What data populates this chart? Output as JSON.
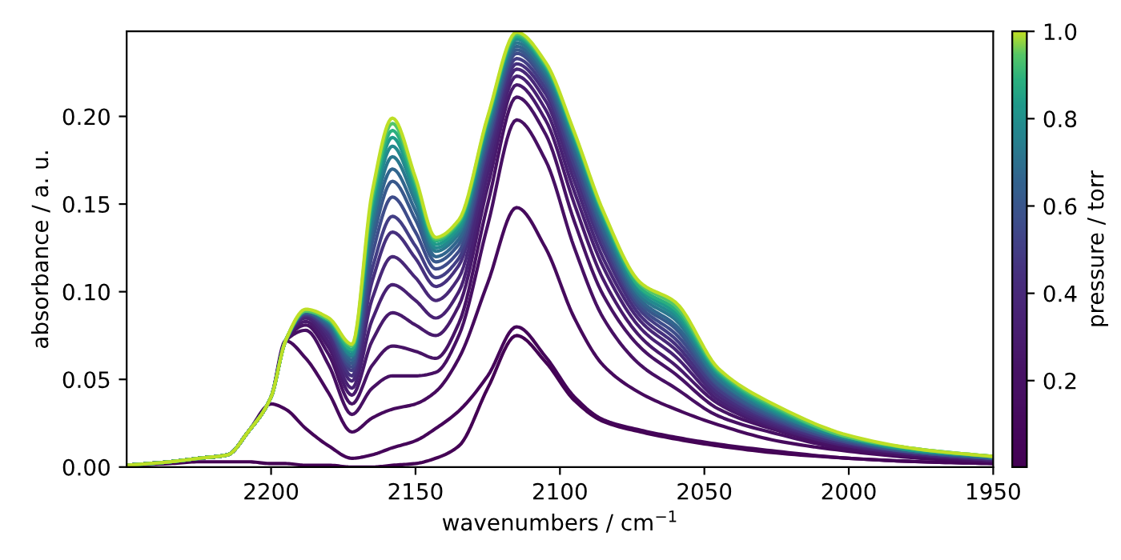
{
  "chart_data": {
    "type": "line",
    "xlabel": "wavenumbers / cm$^{−1}$",
    "ylabel": "absorbance / a. u.",
    "clabel": "pressure / torr",
    "x": [
      2250,
      2235,
      2225,
      2215,
      2208,
      2200,
      2195,
      2188,
      2180,
      2172,
      2165,
      2158,
      2150,
      2143,
      2135,
      2125,
      2115,
      2105,
      2095,
      2085,
      2072,
      2060,
      2045,
      2025,
      2000,
      1975,
      1950
    ],
    "xlim": [
      2250,
      1950
    ],
    "xticks": [
      2200,
      2150,
      2100,
      2050,
      2000,
      1950
    ],
    "ylim": [
      0,
      0.2485
    ],
    "yticks": [
      {
        "value": 0,
        "label": "0.00"
      },
      {
        "value": 0.05,
        "label": "0.05"
      },
      {
        "value": 0.1,
        "label": "0.10"
      },
      {
        "value": 0.15,
        "label": "0.15"
      },
      {
        "value": 0.2,
        "label": "0.20"
      }
    ],
    "clim": [
      0.002,
      1.0
    ],
    "cticks": [
      {
        "value": 0.2,
        "label": "0.2"
      },
      {
        "value": 0.4,
        "label": "0.4"
      },
      {
        "value": 0.6,
        "label": "0.6"
      },
      {
        "value": 0.8,
        "label": "0.8"
      },
      {
        "value": 1.0,
        "label": "1.0"
      }
    ],
    "grid": false,
    "marker": "none",
    "line_style": "solid",
    "series": [
      {
        "color": "#440154",
        "values": [
          0.001,
          0.002,
          0.003,
          0.003,
          0.003,
          0.002,
          0.002,
          0.001,
          0.001,
          0.0,
          0.0,
          0.001,
          0.002,
          0.005,
          0.012,
          0.045,
          0.075,
          0.06,
          0.038,
          0.026,
          0.02,
          0.016,
          0.012,
          0.008,
          0.005,
          0.003,
          0.002
        ]
      },
      {
        "color": "#450559",
        "values": [
          0.001,
          0.003,
          0.005,
          0.007,
          0.02,
          0.036,
          0.033,
          0.022,
          0.012,
          0.005,
          0.007,
          0.011,
          0.015,
          0.022,
          0.032,
          0.052,
          0.08,
          0.063,
          0.04,
          0.027,
          0.021,
          0.017,
          0.013,
          0.009,
          0.005,
          0.003,
          0.002
        ]
      },
      {
        "color": "#460a5d",
        "values": [
          0.001,
          0.003,
          0.005,
          0.007,
          0.02,
          0.04,
          0.072,
          0.062,
          0.042,
          0.02,
          0.028,
          0.033,
          0.036,
          0.043,
          0.062,
          0.105,
          0.148,
          0.125,
          0.085,
          0.058,
          0.042,
          0.033,
          0.024,
          0.015,
          0.009,
          0.005,
          0.003
        ]
      },
      {
        "color": "#471063",
        "values": [
          0.001,
          0.003,
          0.005,
          0.007,
          0.02,
          0.04,
          0.072,
          0.078,
          0.058,
          0.03,
          0.045,
          0.052,
          0.052,
          0.054,
          0.075,
          0.138,
          0.198,
          0.175,
          0.125,
          0.085,
          0.058,
          0.045,
          0.029,
          0.019,
          0.01,
          0.006,
          0.003
        ]
      },
      {
        "color": "#471365",
        "values": [
          0.001,
          0.003,
          0.005,
          0.007,
          0.02,
          0.04,
          0.072,
          0.081,
          0.064,
          0.036,
          0.058,
          0.069,
          0.066,
          0.062,
          0.082,
          0.15,
          0.211,
          0.19,
          0.14,
          0.098,
          0.068,
          0.053,
          0.033,
          0.021,
          0.011,
          0.006,
          0.004
        ]
      },
      {
        "color": "#481a6c",
        "values": [
          0.001,
          0.003,
          0.005,
          0.007,
          0.02,
          0.04,
          0.072,
          0.083,
          0.068,
          0.041,
          0.072,
          0.088,
          0.081,
          0.075,
          0.092,
          0.16,
          0.218,
          0.198,
          0.15,
          0.107,
          0.074,
          0.058,
          0.036,
          0.022,
          0.012,
          0.007,
          0.004
        ]
      },
      {
        "color": "#482173",
        "values": [
          0.001,
          0.003,
          0.005,
          0.007,
          0.02,
          0.04,
          0.072,
          0.085,
          0.071,
          0.045,
          0.084,
          0.104,
          0.095,
          0.085,
          0.1,
          0.167,
          0.223,
          0.204,
          0.157,
          0.114,
          0.079,
          0.063,
          0.038,
          0.023,
          0.012,
          0.007,
          0.004
        ]
      },
      {
        "color": "#482878",
        "values": [
          0.001,
          0.003,
          0.005,
          0.007,
          0.02,
          0.04,
          0.072,
          0.086,
          0.074,
          0.049,
          0.096,
          0.12,
          0.108,
          0.095,
          0.108,
          0.173,
          0.227,
          0.209,
          0.163,
          0.119,
          0.083,
          0.067,
          0.04,
          0.024,
          0.013,
          0.007,
          0.004
        ]
      },
      {
        "color": "#46307e",
        "values": [
          0.001,
          0.003,
          0.005,
          0.007,
          0.02,
          0.04,
          0.072,
          0.087,
          0.076,
          0.052,
          0.106,
          0.134,
          0.119,
          0.103,
          0.115,
          0.178,
          0.23,
          0.213,
          0.168,
          0.124,
          0.086,
          0.07,
          0.042,
          0.025,
          0.013,
          0.008,
          0.005
        ]
      },
      {
        "color": "#433e85",
        "values": [
          0.001,
          0.003,
          0.005,
          0.007,
          0.02,
          0.04,
          0.072,
          0.087,
          0.078,
          0.055,
          0.113,
          0.143,
          0.126,
          0.108,
          0.119,
          0.182,
          0.233,
          0.216,
          0.172,
          0.128,
          0.089,
          0.073,
          0.044,
          0.026,
          0.014,
          0.008,
          0.005
        ]
      },
      {
        "color": "#3e4c8a",
        "values": [
          0.001,
          0.003,
          0.005,
          0.007,
          0.02,
          0.04,
          0.072,
          0.088,
          0.079,
          0.057,
          0.121,
          0.154,
          0.134,
          0.113,
          0.123,
          0.185,
          0.236,
          0.219,
          0.176,
          0.131,
          0.091,
          0.076,
          0.046,
          0.027,
          0.014,
          0.008,
          0.005
        ]
      },
      {
        "color": "#38598c",
        "values": [
          0.001,
          0.003,
          0.005,
          0.007,
          0.02,
          0.04,
          0.072,
          0.088,
          0.08,
          0.059,
          0.128,
          0.163,
          0.141,
          0.117,
          0.127,
          0.188,
          0.238,
          0.221,
          0.179,
          0.134,
          0.093,
          0.079,
          0.047,
          0.028,
          0.015,
          0.008,
          0.005
        ]
      },
      {
        "color": "#31668e",
        "values": [
          0.001,
          0.003,
          0.005,
          0.007,
          0.02,
          0.04,
          0.072,
          0.088,
          0.081,
          0.061,
          0.134,
          0.17,
          0.146,
          0.12,
          0.13,
          0.19,
          0.24,
          0.223,
          0.181,
          0.136,
          0.095,
          0.081,
          0.049,
          0.029,
          0.015,
          0.009,
          0.005
        ]
      },
      {
        "color": "#2a788e",
        "values": [
          0.001,
          0.003,
          0.005,
          0.007,
          0.02,
          0.04,
          0.072,
          0.089,
          0.082,
          0.063,
          0.139,
          0.177,
          0.151,
          0.123,
          0.133,
          0.193,
          0.242,
          0.225,
          0.184,
          0.139,
          0.097,
          0.084,
          0.05,
          0.03,
          0.016,
          0.009,
          0.006
        ]
      },
      {
        "color": "#23898e",
        "values": [
          0.001,
          0.003,
          0.005,
          0.007,
          0.02,
          0.04,
          0.072,
          0.089,
          0.083,
          0.064,
          0.144,
          0.183,
          0.155,
          0.125,
          0.135,
          0.195,
          0.244,
          0.227,
          0.186,
          0.141,
          0.099,
          0.086,
          0.052,
          0.031,
          0.016,
          0.009,
          0.006
        ]
      },
      {
        "color": "#1f9a8a",
        "values": [
          0.001,
          0.003,
          0.005,
          0.007,
          0.02,
          0.04,
          0.072,
          0.089,
          0.083,
          0.066,
          0.148,
          0.188,
          0.158,
          0.127,
          0.137,
          0.197,
          0.245,
          0.228,
          0.188,
          0.143,
          0.101,
          0.088,
          0.053,
          0.032,
          0.017,
          0.009,
          0.006
        ]
      },
      {
        "color": "#2ab07f",
        "values": [
          0.001,
          0.003,
          0.005,
          0.007,
          0.02,
          0.04,
          0.072,
          0.089,
          0.084,
          0.067,
          0.151,
          0.192,
          0.161,
          0.129,
          0.139,
          0.198,
          0.246,
          0.229,
          0.189,
          0.144,
          0.102,
          0.09,
          0.054,
          0.033,
          0.017,
          0.01,
          0.006
        ]
      },
      {
        "color": "#52c569",
        "values": [
          0.001,
          0.003,
          0.005,
          0.007,
          0.02,
          0.04,
          0.072,
          0.089,
          0.084,
          0.069,
          0.154,
          0.196,
          0.163,
          0.13,
          0.14,
          0.199,
          0.247,
          0.23,
          0.19,
          0.145,
          0.104,
          0.092,
          0.055,
          0.034,
          0.017,
          0.01,
          0.006
        ]
      },
      {
        "color": "#bddf26",
        "values": [
          0.001,
          0.003,
          0.005,
          0.007,
          0.02,
          0.04,
          0.072,
          0.09,
          0.085,
          0.07,
          0.157,
          0.199,
          0.165,
          0.131,
          0.141,
          0.2,
          0.248,
          0.231,
          0.191,
          0.146,
          0.105,
          0.094,
          0.056,
          0.035,
          0.018,
          0.01,
          0.006
        ]
      }
    ]
  }
}
